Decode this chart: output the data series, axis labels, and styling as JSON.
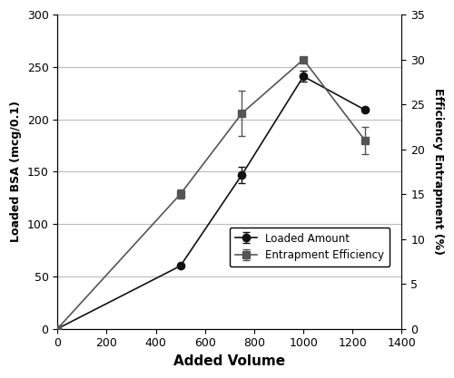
{
  "x_loaded": [
    0,
    500,
    750,
    1000,
    1250
  ],
  "y_loaded": [
    0,
    60,
    147,
    241,
    209
  ],
  "y_loaded_err": [
    0,
    0,
    8,
    5,
    0
  ],
  "x_entrap": [
    0,
    500,
    750,
    1000,
    1250
  ],
  "y_entrap": [
    0,
    15,
    24,
    30,
    21
  ],
  "y_entrap_err": [
    0,
    0.5,
    2.5,
    0.3,
    1.5
  ],
  "loaded_color": "#111111",
  "entrap_color": "#555555",
  "xlabel": "Added Volume",
  "ylabel_left": "Loaded BSA (mcg/0.1)",
  "ylabel_right": "Efficiency Entrapment (%)",
  "xlim": [
    0,
    1400
  ],
  "ylim_left": [
    0,
    300
  ],
  "ylim_right": [
    0,
    35
  ],
  "xticks": [
    0,
    200,
    400,
    600,
    800,
    1000,
    1200,
    1400
  ],
  "yticks_left": [
    0,
    50,
    100,
    150,
    200,
    250,
    300
  ],
  "yticks_right": [
    0,
    5,
    10,
    15,
    20,
    25,
    30,
    35
  ],
  "legend_loaded": "Loaded Amount",
  "legend_entrap": "Entrapment Efficiency",
  "bg_color": "#ffffff",
  "grid_color": "#bbbbbb",
  "figsize": [
    5.0,
    4.17
  ],
  "dpi": 100
}
